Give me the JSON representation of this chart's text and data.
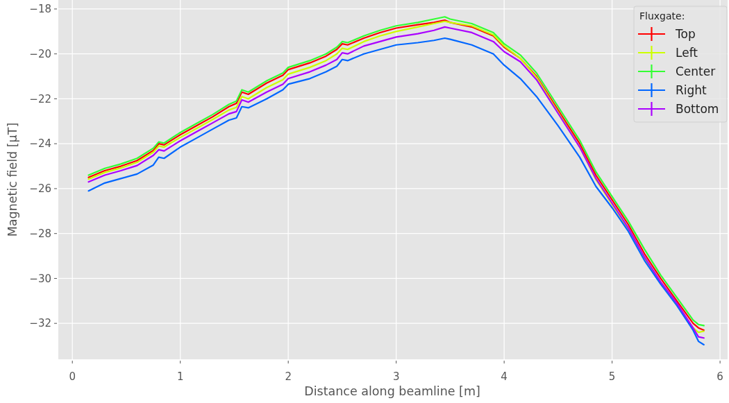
{
  "chart_data": {
    "type": "line",
    "xlabel": "Distance along beamline [m]",
    "ylabel": "Magnetic field [µT]",
    "legend_title": "Fluxgate:",
    "legend": "top right",
    "grid": true,
    "line_style": "solid",
    "marker": "none",
    "xlim": [
      -0.13,
      6.07
    ],
    "ylim": [
      -33.6,
      -17.6
    ],
    "xticks": [
      0,
      1,
      2,
      3,
      4,
      5,
      6
    ],
    "yticks": [
      {
        "value": -32,
        "label": "−32"
      },
      {
        "value": -30,
        "label": "−30"
      },
      {
        "value": -28,
        "label": "−28"
      },
      {
        "value": -26,
        "label": "−26"
      },
      {
        "value": -24,
        "label": "−24"
      },
      {
        "value": -22,
        "label": "−22"
      },
      {
        "value": -20,
        "label": "−20"
      },
      {
        "value": -18,
        "label": "−18"
      }
    ],
    "x": [
      0.15,
      0.3,
      0.45,
      0.6,
      0.75,
      0.8,
      0.85,
      1.0,
      1.15,
      1.3,
      1.45,
      1.52,
      1.57,
      1.63,
      1.8,
      1.95,
      2.0,
      2.2,
      2.35,
      2.45,
      2.5,
      2.55,
      2.7,
      2.85,
      3.0,
      3.2,
      3.35,
      3.45,
      3.5,
      3.7,
      3.85,
      3.9,
      4.0,
      4.15,
      4.3,
      4.5,
      4.7,
      4.85,
      5.0,
      5.15,
      5.3,
      5.45,
      5.6,
      5.75,
      5.8,
      5.85
    ],
    "series": [
      {
        "name": "Top",
        "color": "#ff0000",
        "values": [
          -25.5,
          -25.2,
          -25.0,
          -24.75,
          -24.3,
          -24.0,
          -24.05,
          -23.6,
          -23.2,
          -22.8,
          -22.35,
          -22.2,
          -21.7,
          -21.8,
          -21.3,
          -20.95,
          -20.7,
          -20.4,
          -20.1,
          -19.8,
          -19.55,
          -19.6,
          -19.3,
          -19.05,
          -18.85,
          -18.7,
          -18.6,
          -18.5,
          -18.6,
          -18.8,
          -19.1,
          -19.2,
          -19.7,
          -20.2,
          -21.0,
          -22.5,
          -24.0,
          -25.4,
          -26.5,
          -27.6,
          -28.9,
          -30.0,
          -31.0,
          -32.0,
          -32.2,
          -32.3
        ]
      },
      {
        "name": "Left",
        "color": "#ccff00",
        "values": [
          -25.58,
          -25.28,
          -25.08,
          -24.83,
          -24.38,
          -24.1,
          -24.15,
          -23.72,
          -23.32,
          -22.92,
          -22.5,
          -22.38,
          -21.9,
          -22.0,
          -21.5,
          -21.15,
          -20.9,
          -20.6,
          -20.3,
          -20.0,
          -19.75,
          -19.8,
          -19.45,
          -19.2,
          -19.0,
          -18.8,
          -18.65,
          -18.55,
          -18.6,
          -18.75,
          -19.05,
          -19.15,
          -19.65,
          -20.2,
          -21.05,
          -22.6,
          -24.15,
          -25.6,
          -26.7,
          -27.8,
          -29.1,
          -30.2,
          -31.2,
          -32.2,
          -32.4,
          -32.35
        ]
      },
      {
        "name": "Center",
        "color": "#33ff33",
        "values": [
          -25.4,
          -25.1,
          -24.9,
          -24.65,
          -24.2,
          -23.92,
          -23.97,
          -23.5,
          -23.1,
          -22.7,
          -22.25,
          -22.1,
          -21.6,
          -21.7,
          -21.2,
          -20.85,
          -20.6,
          -20.3,
          -20.0,
          -19.7,
          -19.45,
          -19.5,
          -19.2,
          -18.95,
          -18.75,
          -18.6,
          -18.45,
          -18.35,
          -18.45,
          -18.65,
          -18.95,
          -19.05,
          -19.55,
          -20.05,
          -20.85,
          -22.35,
          -23.85,
          -25.25,
          -26.35,
          -27.45,
          -28.7,
          -29.85,
          -30.85,
          -31.85,
          -32.05,
          -32.1
        ]
      },
      {
        "name": "Right",
        "color": "#0066ff",
        "values": [
          -26.1,
          -25.75,
          -25.55,
          -25.35,
          -24.95,
          -24.6,
          -24.65,
          -24.15,
          -23.75,
          -23.35,
          -22.95,
          -22.85,
          -22.35,
          -22.4,
          -22.0,
          -21.6,
          -21.35,
          -21.1,
          -20.8,
          -20.55,
          -20.25,
          -20.3,
          -20.0,
          -19.8,
          -19.6,
          -19.5,
          -19.4,
          -19.3,
          -19.35,
          -19.6,
          -19.9,
          -20.0,
          -20.5,
          -21.1,
          -21.9,
          -23.2,
          -24.6,
          -25.9,
          -26.85,
          -27.9,
          -29.2,
          -30.25,
          -31.2,
          -32.3,
          -32.8,
          -32.95
        ]
      },
      {
        "name": "Bottom",
        "color": "#aa00ff",
        "values": [
          -25.7,
          -25.4,
          -25.2,
          -24.97,
          -24.52,
          -24.27,
          -24.32,
          -23.87,
          -23.47,
          -23.07,
          -22.67,
          -22.57,
          -22.05,
          -22.15,
          -21.7,
          -21.35,
          -21.1,
          -20.8,
          -20.5,
          -20.25,
          -19.95,
          -20.0,
          -19.65,
          -19.45,
          -19.25,
          -19.1,
          -18.95,
          -18.8,
          -18.85,
          -19.05,
          -19.35,
          -19.45,
          -19.9,
          -20.35,
          -21.15,
          -22.65,
          -24.15,
          -25.55,
          -26.65,
          -27.75,
          -29.05,
          -30.15,
          -31.1,
          -32.2,
          -32.6,
          -32.65
        ]
      }
    ]
  }
}
